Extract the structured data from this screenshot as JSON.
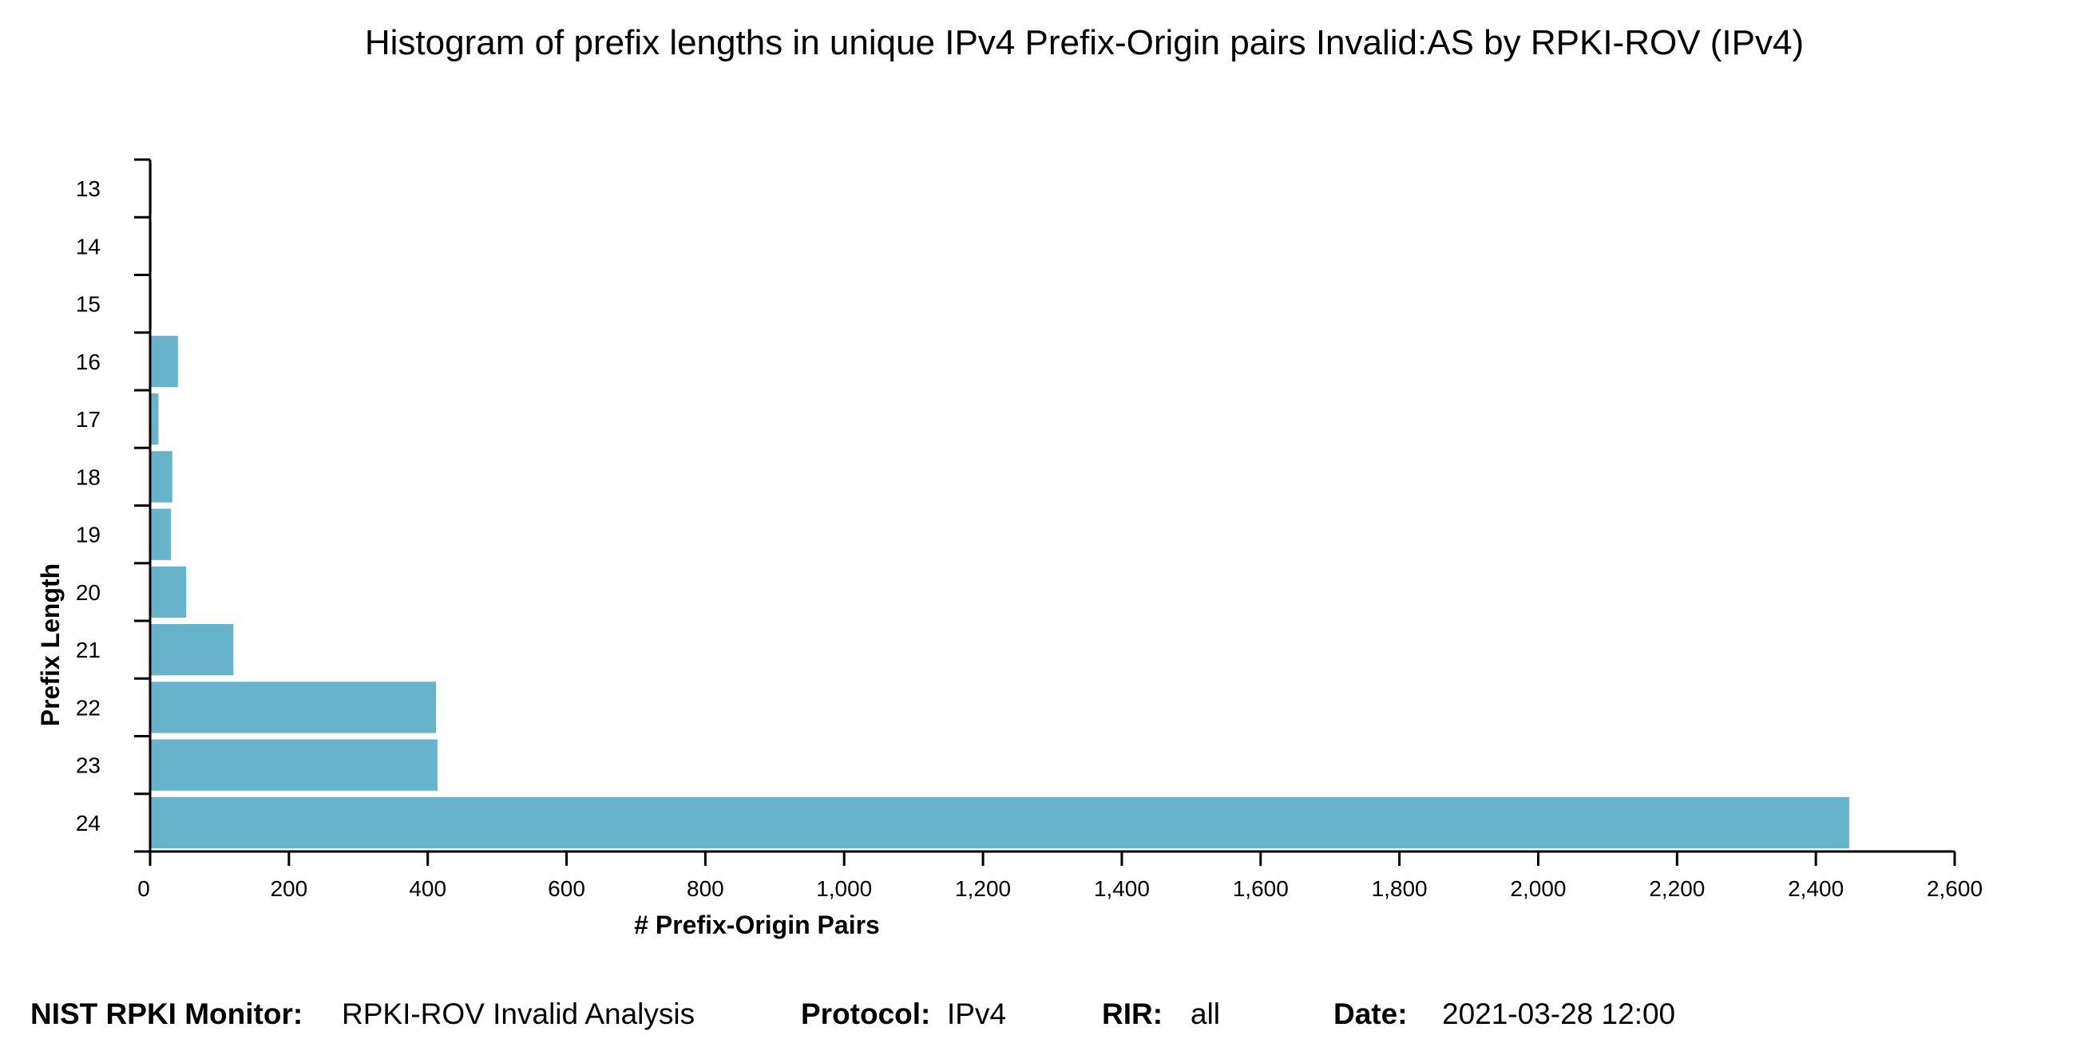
{
  "chart_data": {
    "type": "bar",
    "orientation": "horizontal",
    "title": "Histogram of prefix lengths in unique IPv4 Prefix-Origin pairs Invalid:AS by RPKI-ROV (IPv4)",
    "xlabel": "# Prefix-Origin Pairs",
    "ylabel": "Prefix Length",
    "categories": [
      "13",
      "14",
      "15",
      "16",
      "17",
      "18",
      "19",
      "20",
      "21",
      "22",
      "23",
      "24"
    ],
    "values": [
      2,
      2,
      2,
      40,
      12,
      32,
      30,
      52,
      120,
      412,
      414,
      2448
    ],
    "xlim": [
      0,
      2600
    ],
    "xticks": [
      "0",
      "200",
      "400",
      "600",
      "800",
      "1,000",
      "1,200",
      "1,400",
      "1,600",
      "1,800",
      "2,000",
      "2,200",
      "2,400",
      "2,600"
    ],
    "bar_color": "#67b3cc",
    "grid": false,
    "legend": "none"
  },
  "footer": {
    "monitor_label": "NIST RPKI Monitor:",
    "monitor_value": "RPKI-ROV Invalid Analysis",
    "protocol_label": "Protocol:",
    "protocol_value": "IPv4",
    "rir_label": "RIR:",
    "rir_value": "all",
    "date_label": "Date:",
    "date_value": "2021-03-28 12:00"
  }
}
